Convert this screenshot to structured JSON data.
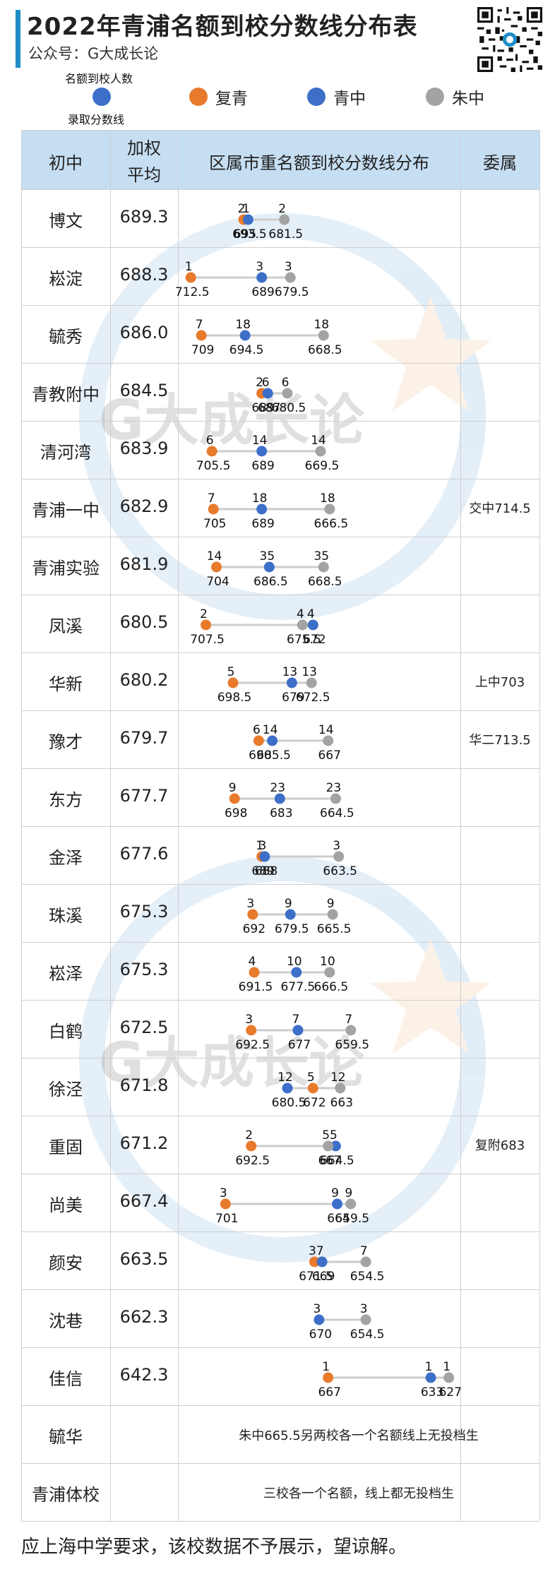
{
  "header": {
    "title": "2022年青浦名额到校分数线分布表",
    "subtitle": "公众号：G大成长论"
  },
  "legend": {
    "count_label": "名额到校人数",
    "score_label": "录取分数线",
    "items": [
      {
        "label": "复青",
        "color": "#e87a2c"
      },
      {
        "label": "青中",
        "color": "#3d6fc9"
      },
      {
        "label": "朱中",
        "color": "#a3a3a3"
      }
    ]
  },
  "table_headers": {
    "school": "初中",
    "avg_line1": "加权",
    "avg_line2": "平均",
    "dist": "区属市重名额到校分数线分布",
    "affiliation": "委属"
  },
  "chart_data": {
    "type": "dot-range",
    "x_direction": "scores decrease left to right",
    "xlim": [
      735,
      615
    ],
    "series": [
      {
        "name": "复青",
        "color": "#e87a2c"
      },
      {
        "name": "青中",
        "color": "#3d6fc9"
      },
      {
        "name": "朱中",
        "color": "#a3a3a3"
      }
    ],
    "rows": [
      {
        "school": "博文",
        "avg": "689.3",
        "fuqing": [
          695,
          2
        ],
        "qingzhong": [
          693.5,
          1
        ],
        "zhuzhong": [
          681.5,
          2
        ],
        "note": ""
      },
      {
        "school": "崧淀",
        "avg": "688.3",
        "fuqing": [
          712.5,
          1
        ],
        "qingzhong": [
          689,
          3
        ],
        "zhuzhong": [
          679.5,
          3
        ],
        "note": ""
      },
      {
        "school": "毓秀",
        "avg": "686.0",
        "fuqing": [
          709,
          7
        ],
        "qingzhong": [
          694.5,
          18
        ],
        "zhuzhong": [
          668.5,
          18
        ],
        "note": ""
      },
      {
        "school": "青教附中",
        "avg": "684.5",
        "fuqing": [
          689,
          2
        ],
        "qingzhong": [
          687,
          6
        ],
        "zhuzhong": [
          680.5,
          6
        ],
        "note": ""
      },
      {
        "school": "清河湾",
        "avg": "683.9",
        "fuqing": [
          705.5,
          6
        ],
        "qingzhong": [
          689,
          14
        ],
        "zhuzhong": [
          669.5,
          14
        ],
        "note": ""
      },
      {
        "school": "青浦一中",
        "avg": "682.9",
        "fuqing": [
          705,
          7
        ],
        "qingzhong": [
          689,
          18
        ],
        "zhuzhong": [
          666.5,
          18
        ],
        "note": "交中714.5"
      },
      {
        "school": "青浦实验",
        "avg": "681.9",
        "fuqing": [
          704,
          14
        ],
        "qingzhong": [
          686.5,
          35
        ],
        "zhuzhong": [
          668.5,
          35
        ],
        "note": ""
      },
      {
        "school": "凤溪",
        "avg": "680.5",
        "fuqing": [
          707.5,
          2
        ],
        "qingzhong": [
          672,
          4
        ],
        "zhuzhong": [
          675.5,
          4
        ],
        "note": ""
      },
      {
        "school": "华新",
        "avg": "680.2",
        "fuqing": [
          698.5,
          5
        ],
        "qingzhong": [
          679,
          13
        ],
        "zhuzhong": [
          672.5,
          13
        ],
        "note": "上中703"
      },
      {
        "school": "豫才",
        "avg": "679.7",
        "fuqing": [
          690,
          6
        ],
        "qingzhong": [
          685.5,
          14
        ],
        "zhuzhong": [
          667,
          14
        ],
        "note": "华二713.5"
      },
      {
        "school": "东方",
        "avg": "677.7",
        "fuqing": [
          698,
          9
        ],
        "qingzhong": [
          683,
          23
        ],
        "zhuzhong": [
          664.5,
          23
        ],
        "note": ""
      },
      {
        "school": "金泽",
        "avg": "677.6",
        "fuqing": [
          689,
          1
        ],
        "qingzhong": [
          688,
          3
        ],
        "zhuzhong": [
          663.5,
          3
        ],
        "note": ""
      },
      {
        "school": "珠溪",
        "avg": "675.3",
        "fuqing": [
          692,
          3
        ],
        "qingzhong": [
          679.5,
          9
        ],
        "zhuzhong": [
          665.5,
          9
        ],
        "note": ""
      },
      {
        "school": "崧泽",
        "avg": "675.3",
        "fuqing": [
          691.5,
          4
        ],
        "qingzhong": [
          677.5,
          10
        ],
        "zhuzhong": [
          666.5,
          10
        ],
        "note": ""
      },
      {
        "school": "白鹤",
        "avg": "672.5",
        "fuqing": [
          692.5,
          3
        ],
        "qingzhong": [
          677,
          7
        ],
        "zhuzhong": [
          659.5,
          7
        ],
        "note": ""
      },
      {
        "school": "徐泾",
        "avg": "671.8",
        "fuqing": [
          672,
          5
        ],
        "qingzhong": [
          680.5,
          12
        ],
        "zhuzhong": [
          663,
          12
        ],
        "note": ""
      },
      {
        "school": "重固",
        "avg": "671.2",
        "fuqing": [
          692.5,
          2
        ],
        "qingzhong": [
          664.5,
          5
        ],
        "zhuzhong": [
          667,
          5
        ],
        "note": "复附683"
      },
      {
        "school": "尚美",
        "avg": "667.4",
        "fuqing": [
          701,
          3
        ],
        "qingzhong": [
          664,
          9
        ],
        "zhuzhong": [
          659.5,
          9
        ],
        "note": ""
      },
      {
        "school": "颜安",
        "avg": "663.5",
        "fuqing": [
          671.5,
          3
        ],
        "qingzhong": [
          669,
          7
        ],
        "zhuzhong": [
          654.5,
          7
        ],
        "note": ""
      },
      {
        "school": "沈巷",
        "avg": "662.3",
        "fuqing": null,
        "qingzhong": [
          670,
          3
        ],
        "zhuzhong": [
          654.5,
          3
        ],
        "note": ""
      },
      {
        "school": "佳信",
        "avg": "642.3",
        "fuqing": [
          667,
          1
        ],
        "qingzhong": [
          633,
          1
        ],
        "zhuzhong": [
          627,
          1
        ],
        "note": ""
      }
    ]
  },
  "text_rows": [
    {
      "school": "毓华",
      "text": "朱中665.5另两校各一个名额线上无投档生"
    },
    {
      "school": "青浦体校",
      "text": "三校各一个名额，线上都无投档生"
    }
  ],
  "footer": "应上海中学要求，该校数据不予展示，望谅解。",
  "watermark_text": "G大成长论"
}
